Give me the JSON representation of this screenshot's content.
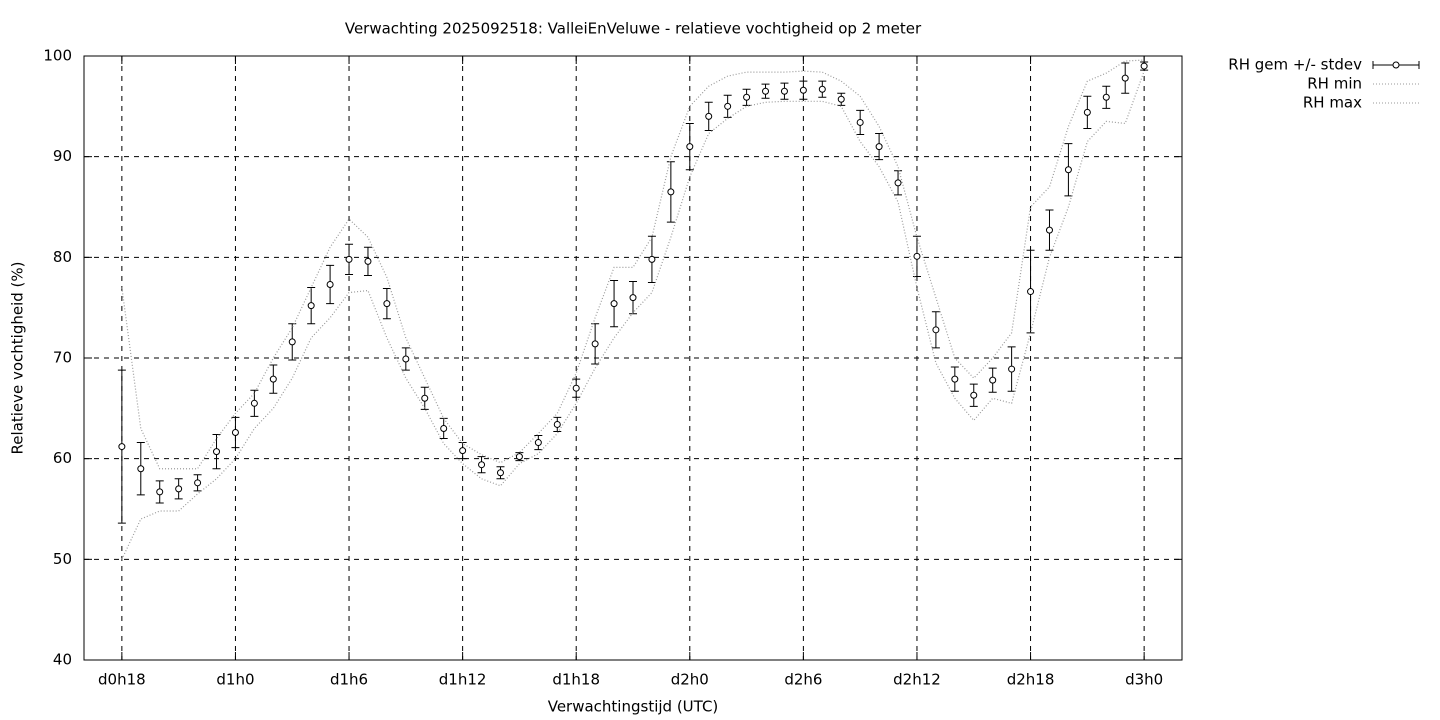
{
  "chart_data": {
    "type": "errorbar",
    "title": "Verwachting 2025092518: ValleiEnVeluwe - relatieve vochtigheid op 2 meter",
    "xlabel": "Verwachtingstijd (UTC)",
    "ylabel": "Relatieve vochtigheid (%)",
    "x": [
      18,
      19,
      20,
      21,
      22,
      23,
      24,
      25,
      26,
      27,
      28,
      29,
      30,
      31,
      32,
      33,
      34,
      35,
      36,
      37,
      38,
      39,
      40,
      41,
      42,
      43,
      44,
      45,
      46,
      47,
      48,
      49,
      50,
      51,
      52,
      53,
      54,
      55,
      56,
      57,
      58,
      59,
      60,
      61,
      62,
      63,
      64,
      65,
      66,
      67,
      68,
      69,
      70,
      71,
      72
    ],
    "series": [
      {
        "name": "RH gem +/- stdev",
        "color": "#000000",
        "values": [
          61.2,
          59.0,
          56.7,
          57.0,
          57.6,
          60.7,
          62.6,
          65.5,
          67.9,
          71.6,
          75.2,
          77.3,
          79.8,
          79.6,
          75.4,
          69.9,
          66.0,
          63.0,
          60.8,
          59.4,
          58.6,
          60.2,
          61.6,
          63.4,
          67.0,
          71.4,
          75.4,
          76.0,
          79.8,
          86.5,
          91.0,
          94.0,
          95.0,
          95.9,
          96.5,
          96.5,
          96.6,
          96.7,
          95.7,
          93.4,
          91.0,
          87.4,
          80.1,
          72.8,
          67.9,
          66.3,
          67.8,
          68.9,
          76.6,
          82.7,
          88.7,
          94.4,
          95.9,
          97.8,
          99.0
        ],
        "errors": [
          7.6,
          2.6,
          1.1,
          1.0,
          0.8,
          1.7,
          1.5,
          1.3,
          1.4,
          1.8,
          1.8,
          1.9,
          1.5,
          1.4,
          1.5,
          1.1,
          1.1,
          1.0,
          0.8,
          0.8,
          0.6,
          0.4,
          0.7,
          0.7,
          0.9,
          2.0,
          2.3,
          1.6,
          2.3,
          3.0,
          2.3,
          1.4,
          1.1,
          0.8,
          0.7,
          0.8,
          0.9,
          0.8,
          0.6,
          1.2,
          1.3,
          1.2,
          2.0,
          1.8,
          1.2,
          1.1,
          1.2,
          2.2,
          4.1,
          2.0,
          2.6,
          1.6,
          1.1,
          1.5,
          0.4
        ]
      },
      {
        "name": "RH min",
        "color": "#9a9a9a",
        "values": [
          50,
          54,
          54.8,
          54.8,
          56.5,
          58,
          60,
          63,
          65,
          68,
          72,
          74,
          76.5,
          76.7,
          72,
          68,
          65,
          61.5,
          59.5,
          58,
          57.3,
          59.5,
          60.5,
          62.5,
          65.5,
          69,
          72,
          74.5,
          76.5,
          82,
          88,
          92.3,
          93.8,
          95,
          95.4,
          95.5,
          95.5,
          95.5,
          95,
          91.5,
          89,
          85.5,
          77,
          69.5,
          66,
          63.8,
          66,
          65.5,
          72.5,
          80,
          85,
          91.5,
          93.5,
          93.3,
          98.5
        ]
      },
      {
        "name": "RH max",
        "color": "#9a9a9a",
        "values": [
          77,
          63,
          59,
          59,
          59,
          62,
          64.5,
          66.5,
          70,
          73,
          77,
          81,
          83.8,
          82,
          78,
          72,
          68,
          64,
          61.5,
          60.4,
          59.6,
          60.6,
          62.5,
          64.5,
          68.5,
          74,
          79,
          79,
          82,
          90,
          95,
          97,
          98,
          98.4,
          98.4,
          98.4,
          98.5,
          98.4,
          97.5,
          96,
          93,
          89,
          82,
          76,
          70,
          68,
          70,
          72.5,
          85,
          87,
          93,
          97.5,
          98.3,
          99.5,
          99.6
        ]
      }
    ],
    "xlim": [
      16,
      74
    ],
    "xticks": [
      {
        "value": 18,
        "label": "d0h18"
      },
      {
        "value": 24,
        "label": "d1h0"
      },
      {
        "value": 30,
        "label": "d1h6"
      },
      {
        "value": 36,
        "label": "d1h12"
      },
      {
        "value": 42,
        "label": "d1h18"
      },
      {
        "value": 48,
        "label": "d2h0"
      },
      {
        "value": 54,
        "label": "d2h6"
      },
      {
        "value": 60,
        "label": "d2h12"
      },
      {
        "value": 66,
        "label": "d2h18"
      },
      {
        "value": 72,
        "label": "d3h0"
      }
    ],
    "ylim": [
      40,
      100
    ],
    "yticks": [
      40,
      50,
      60,
      70,
      80,
      90,
      100
    ],
    "grid": true,
    "legend": "outside-right"
  }
}
